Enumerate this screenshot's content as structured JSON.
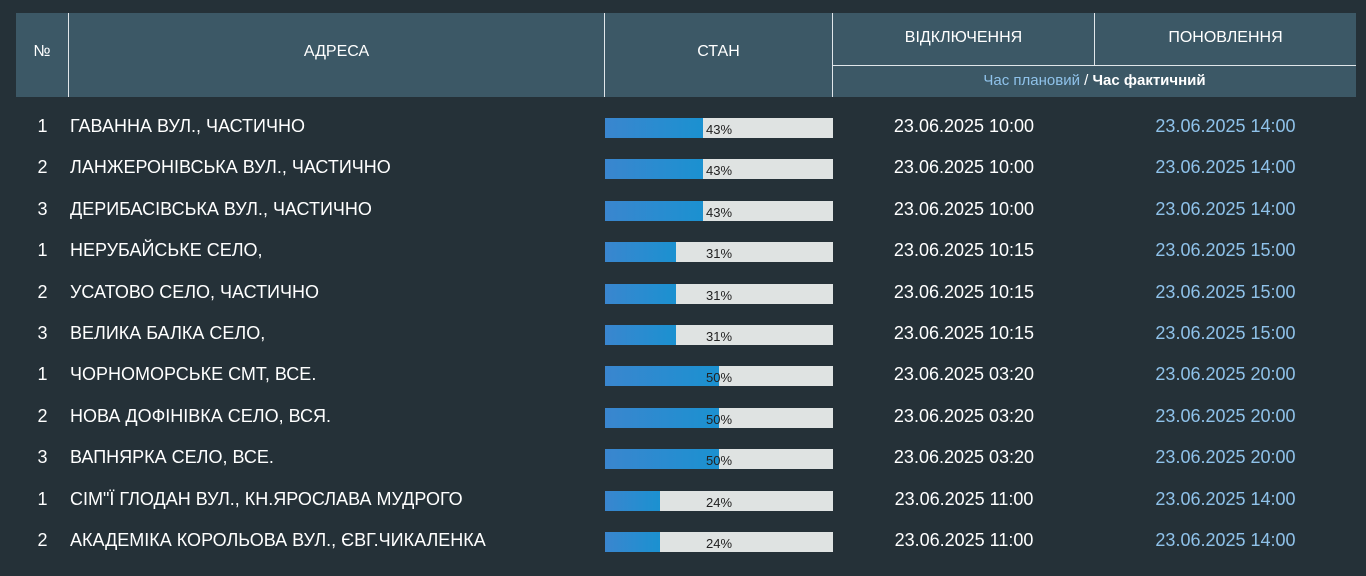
{
  "header": {
    "num": "№",
    "address": "АДРЕСА",
    "state": "СТАН",
    "outage": "ВІДКЛЮЧЕННЯ",
    "update": "ПОНОВЛЕННЯ",
    "time_planned": "Час плановий",
    "time_sep": " / ",
    "time_actual": "Час фактичний"
  },
  "rows": [
    {
      "num": "1",
      "address": "ГАВАННА ВУЛ., ЧАСТИЧНО",
      "progress": 43,
      "progress_label": "43%",
      "off": "23.06.2025 10:00",
      "upd": "23.06.2025 14:00"
    },
    {
      "num": "2",
      "address": "ЛАНЖЕРОНІВСЬКА ВУЛ., ЧАСТИЧНО",
      "progress": 43,
      "progress_label": "43%",
      "off": "23.06.2025 10:00",
      "upd": "23.06.2025 14:00"
    },
    {
      "num": "3",
      "address": "ДЕРИБАСІВСЬКА ВУЛ., ЧАСТИЧНО",
      "progress": 43,
      "progress_label": "43%",
      "off": "23.06.2025 10:00",
      "upd": "23.06.2025 14:00"
    },
    {
      "num": "1",
      "address": "НЕРУБАЙСЬКЕ СЕЛО,",
      "progress": 31,
      "progress_label": "31%",
      "off": "23.06.2025 10:15",
      "upd": "23.06.2025 15:00"
    },
    {
      "num": "2",
      "address": "УСАТОВО СЕЛО, ЧАСТИЧНО",
      "progress": 31,
      "progress_label": "31%",
      "off": "23.06.2025 10:15",
      "upd": "23.06.2025 15:00"
    },
    {
      "num": "3",
      "address": "ВЕЛИКА БАЛКА СЕЛО,",
      "progress": 31,
      "progress_label": "31%",
      "off": "23.06.2025 10:15",
      "upd": "23.06.2025 15:00"
    },
    {
      "num": "1",
      "address": "ЧОРНОМОРСЬКЕ СМТ, ВСЕ.",
      "progress": 50,
      "progress_label": "50%",
      "off": "23.06.2025 03:20",
      "upd": "23.06.2025 20:00"
    },
    {
      "num": "2",
      "address": "НОВА ДОФІНІВКА СЕЛО, ВСЯ.",
      "progress": 50,
      "progress_label": "50%",
      "off": "23.06.2025 03:20",
      "upd": "23.06.2025 20:00"
    },
    {
      "num": "3",
      "address": "ВАПНЯРКА СЕЛО, ВСЕ.",
      "progress": 50,
      "progress_label": "50%",
      "off": "23.06.2025 03:20",
      "upd": "23.06.2025 20:00"
    },
    {
      "num": "1",
      "address": "СІМ\"Ї ГЛОДАН ВУЛ., КН.ЯРОСЛАВА МУДРОГО",
      "progress": 24,
      "progress_label": "24%",
      "off": "23.06.2025 11:00",
      "upd": "23.06.2025 14:00"
    },
    {
      "num": "2",
      "address": "АКАДЕМІКА КОРОЛЬОВА ВУЛ., ЄВГ.ЧИКАЛЕНКА",
      "progress": 24,
      "progress_label": "24%",
      "off": "23.06.2025 11:00",
      "upd": "23.06.2025 14:00"
    }
  ],
  "colors": {
    "background": "#253138",
    "header": "#3c5866",
    "bar_fill": "#1b91d0",
    "bar_track": "#dfe3e2",
    "update_time": "#8fc2ea"
  }
}
